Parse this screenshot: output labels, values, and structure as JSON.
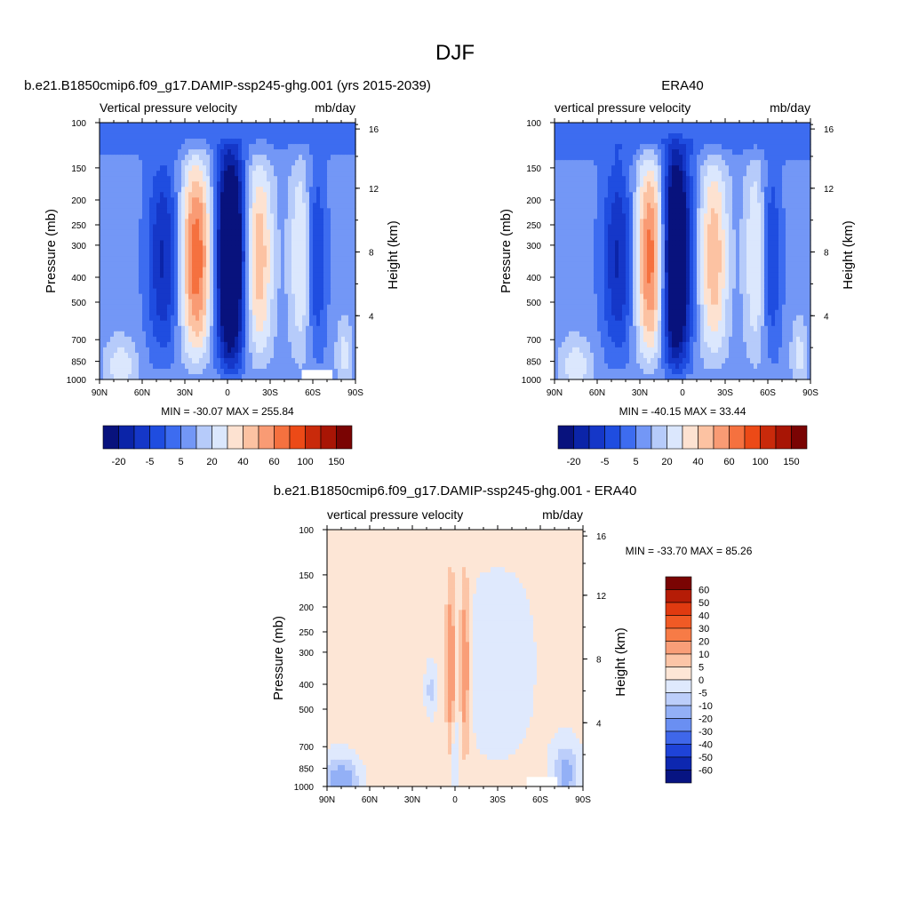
{
  "figure": {
    "title": "DJF"
  },
  "chart_data": [
    {
      "type": "heatmap",
      "id": "model",
      "title": "b.e21.B1850cmip6.f09_g17.DAMIP-ssp245-ghg.001 (yrs 2015-2039)",
      "left_subtitle": "Vertical pressure velocity",
      "right_subtitle": "mb/day",
      "xlabel": "",
      "ylabel": "Pressure (mb)",
      "ylabel_right": "Height (km)",
      "x_ticks": [
        "90N",
        "60N",
        "30N",
        "0",
        "30S",
        "60S",
        "90S"
      ],
      "y_ticks": [
        "100",
        "150",
        "200",
        "250",
        "300",
        "400",
        "500",
        "700",
        "850",
        "1000"
      ],
      "y_ticks_right": [
        "16",
        "12",
        "8",
        "4"
      ],
      "minmax_text": "MIN = -30.07  MAX = 255.84",
      "min": -30.07,
      "max": 255.84,
      "colorbar_labels": [
        "-20",
        "-5",
        "5",
        "20",
        "40",
        "60",
        "100",
        "150"
      ],
      "colorbar_colors": [
        "#08127d",
        "#0b24a8",
        "#1537c8",
        "#1f4de0",
        "#3d6cf0",
        "#7397f6",
        "#b6cbfa",
        "#dbe7fd",
        "#fde2d1",
        "#fcc2a2",
        "#f99b74",
        "#f5713f",
        "#ec4a17",
        "#c92a0b",
        "#a81505",
        "#7a0403"
      ],
      "layout_hint": "top-left"
    },
    {
      "type": "heatmap",
      "id": "obs",
      "title": "ERA40",
      "left_subtitle": "vertical pressure velocity",
      "right_subtitle": "mb/day",
      "xlabel": "",
      "ylabel": "Pressure (mb)",
      "ylabel_right": "Height (km)",
      "x_ticks": [
        "90N",
        "60N",
        "30N",
        "0",
        "30S",
        "60S",
        "90S"
      ],
      "y_ticks": [
        "100",
        "150",
        "200",
        "250",
        "300",
        "400",
        "500",
        "700",
        "850",
        "1000"
      ],
      "y_ticks_right": [
        "16",
        "12",
        "8",
        "4"
      ],
      "minmax_text": "MIN = -40.15  MAX =  33.44",
      "min": -40.15,
      "max": 33.44,
      "colorbar_labels": [
        "-20",
        "-5",
        "5",
        "20",
        "40",
        "60",
        "100",
        "150"
      ],
      "colorbar_colors": [
        "#08127d",
        "#0b24a8",
        "#1537c8",
        "#1f4de0",
        "#3d6cf0",
        "#7397f6",
        "#b6cbfa",
        "#dbe7fd",
        "#fde2d1",
        "#fcc2a2",
        "#f99b74",
        "#f5713f",
        "#ec4a17",
        "#c92a0b",
        "#a81505",
        "#7a0403"
      ],
      "layout_hint": "top-right"
    },
    {
      "type": "heatmap",
      "id": "diff",
      "title": "b.e21.B1850cmip6.f09_g17.DAMIP-ssp245-ghg.001 - ERA40",
      "left_subtitle": "vertical pressure velocity",
      "right_subtitle": "mb/day",
      "xlabel": "",
      "ylabel": "Pressure (mb)",
      "ylabel_right": "Height (km)",
      "x_ticks": [
        "90N",
        "60N",
        "30N",
        "0",
        "30S",
        "60S",
        "90S"
      ],
      "y_ticks": [
        "100",
        "150",
        "200",
        "250",
        "300",
        "400",
        "500",
        "700",
        "850",
        "1000"
      ],
      "y_ticks_right": [
        "16",
        "12",
        "8",
        "4"
      ],
      "minmax_text": "MIN = -33.70  MAX =  85.26",
      "min": -33.7,
      "max": 85.26,
      "colorbar_labels": [
        "60",
        "50",
        "40",
        "30",
        "20",
        "10",
        "5",
        "0",
        "-5",
        "-10",
        "-20",
        "-30",
        "-40",
        "-50",
        "-60"
      ],
      "colorbar_colors": [
        "#7a0403",
        "#b51c06",
        "#e03a10",
        "#f05a25",
        "#f77b46",
        "#f99e78",
        "#fcc5a7",
        "#fde6d6",
        "#dfe9fd",
        "#bccefa",
        "#93b0f6",
        "#6a8ff2",
        "#3f67ea",
        "#1e43d8",
        "#0d27b0",
        "#071482"
      ],
      "layout_hint": "bottom-center"
    }
  ]
}
